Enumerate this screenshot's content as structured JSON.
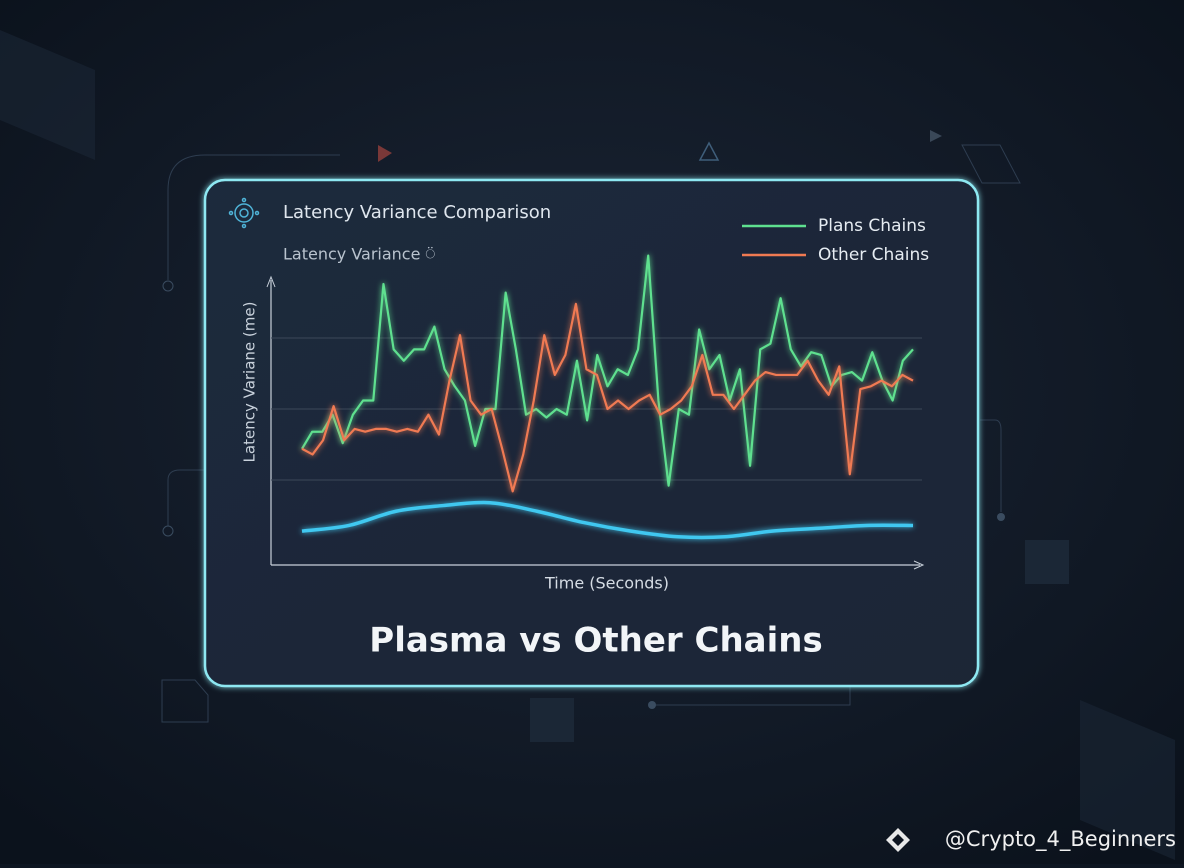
{
  "chart_data": {
    "type": "line",
    "title": "Latency Variance Comparison",
    "subtitle": "Latency Variance ⍥",
    "y_label": "Latency Variane (me)",
    "x_label": "Time (Seconds)",
    "headline": "Plasma vs Other Chains",
    "watermark": "@Crypto_4_Beginners",
    "ylim": [
      -5,
      105
    ],
    "grid_lines": [
      25,
      50,
      75
    ],
    "legend": "upper right",
    "series": [
      {
        "name": "Plans Chains",
        "color": "#5ee08f",
        "values": [
          36,
          42,
          42,
          48,
          38,
          48,
          53,
          53,
          94,
          71,
          67,
          71,
          71,
          79,
          64,
          58,
          53,
          37,
          50,
          50,
          91,
          71,
          48,
          50,
          47,
          50,
          48,
          67,
          46,
          69,
          58,
          64,
          62,
          71,
          104,
          53,
          23,
          50,
          48,
          78,
          64,
          69,
          53,
          64,
          30,
          71,
          73,
          89,
          71,
          65,
          70,
          69,
          58,
          62,
          63,
          60,
          70,
          60,
          53,
          67,
          71
        ]
      },
      {
        "name": "Other Chains",
        "color": "#f07a52",
        "values": [
          36,
          34,
          39,
          51,
          39,
          43,
          42,
          43,
          43,
          42,
          43,
          42,
          48,
          41,
          60,
          76,
          53,
          48,
          50,
          36,
          21,
          34,
          53,
          76,
          62,
          69,
          87,
          64,
          62,
          50,
          53,
          50,
          53,
          55,
          48,
          50,
          53,
          58,
          69,
          55,
          55,
          50,
          55,
          60,
          63,
          62,
          62,
          62,
          67,
          60,
          55,
          65,
          27,
          57,
          58,
          60,
          58,
          62,
          60
        ]
      },
      {
        "color": "#3fc8f0",
        "values": [
          7,
          9,
          14,
          16,
          17,
          14,
          10,
          7,
          5,
          5,
          7,
          8,
          9,
          9
        ]
      }
    ]
  }
}
